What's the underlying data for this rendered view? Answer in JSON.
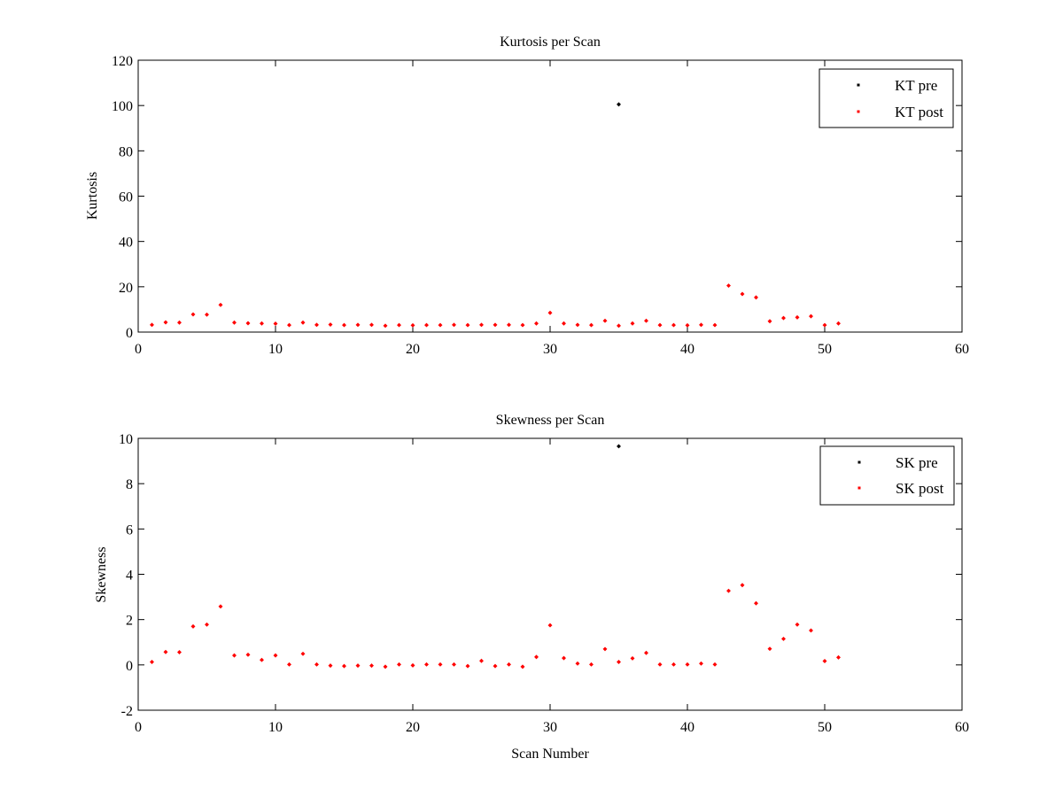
{
  "chart_data": [
    {
      "type": "scatter",
      "title": "Kurtosis per Scan",
      "xlabel": "",
      "ylabel": "Kurtosis",
      "xlim": [
        0,
        60
      ],
      "ylim": [
        0,
        120
      ],
      "xticks": [
        0,
        10,
        20,
        30,
        40,
        50,
        60
      ],
      "yticks": [
        0,
        20,
        40,
        60,
        80,
        100,
        120
      ],
      "grid": false,
      "legend_position": "top-right",
      "series": [
        {
          "name": "KT pre",
          "color": "#000000",
          "points": [
            [
              35,
              100.5
            ]
          ]
        },
        {
          "name": "KT post",
          "color": "#ff0000",
          "points": [
            [
              1,
              3.2
            ],
            [
              2,
              4.3
            ],
            [
              3,
              4.2
            ],
            [
              4,
              7.8
            ],
            [
              5,
              7.7
            ],
            [
              6,
              12.0
            ],
            [
              7,
              4.2
            ],
            [
              8,
              3.9
            ],
            [
              9,
              3.8
            ],
            [
              10,
              3.7
            ],
            [
              11,
              3.1
            ],
            [
              12,
              4.2
            ],
            [
              13,
              3.2
            ],
            [
              14,
              3.3
            ],
            [
              15,
              3.1
            ],
            [
              16,
              3.2
            ],
            [
              17,
              3.2
            ],
            [
              18,
              2.8
            ],
            [
              19,
              3.1
            ],
            [
              20,
              3.0
            ],
            [
              21,
              3.1
            ],
            [
              22,
              3.1
            ],
            [
              23,
              3.2
            ],
            [
              24,
              3.1
            ],
            [
              25,
              3.2
            ],
            [
              26,
              3.2
            ],
            [
              27,
              3.2
            ],
            [
              28,
              3.1
            ],
            [
              29,
              3.8
            ],
            [
              30,
              8.5
            ],
            [
              31,
              3.8
            ],
            [
              32,
              3.2
            ],
            [
              33,
              3.1
            ],
            [
              34,
              5.0
            ],
            [
              35,
              2.8
            ],
            [
              36,
              3.8
            ],
            [
              37,
              5.0
            ],
            [
              38,
              3.1
            ],
            [
              39,
              3.1
            ],
            [
              40,
              3.0
            ],
            [
              41,
              3.2
            ],
            [
              42,
              3.1
            ],
            [
              43,
              20.5
            ],
            [
              44,
              16.8
            ],
            [
              45,
              15.3
            ],
            [
              46,
              4.8
            ],
            [
              47,
              6.2
            ],
            [
              48,
              6.5
            ],
            [
              49,
              7.0
            ],
            [
              50,
              3.1
            ],
            [
              51,
              3.8
            ]
          ]
        }
      ]
    },
    {
      "type": "scatter",
      "title": "Skewness per Scan",
      "xlabel": "Scan Number",
      "ylabel": "Skewness",
      "xlim": [
        0,
        60
      ],
      "ylim": [
        -2,
        10
      ],
      "xticks": [
        0,
        10,
        20,
        30,
        40,
        50,
        60
      ],
      "yticks": [
        -2,
        0,
        2,
        4,
        6,
        8,
        10
      ],
      "grid": false,
      "legend_position": "top-right",
      "series": [
        {
          "name": "SK pre",
          "color": "#000000",
          "points": [
            [
              35,
              9.65
            ]
          ]
        },
        {
          "name": "SK post",
          "color": "#ff0000",
          "points": [
            [
              1,
              0.13
            ],
            [
              2,
              0.57
            ],
            [
              3,
              0.56
            ],
            [
              4,
              1.7
            ],
            [
              5,
              1.78
            ],
            [
              6,
              2.58
            ],
            [
              7,
              0.42
            ],
            [
              8,
              0.45
            ],
            [
              9,
              0.22
            ],
            [
              10,
              0.42
            ],
            [
              11,
              0.02
            ],
            [
              12,
              0.49
            ],
            [
              13,
              0.02
            ],
            [
              14,
              -0.03
            ],
            [
              15,
              -0.05
            ],
            [
              16,
              -0.03
            ],
            [
              17,
              -0.03
            ],
            [
              18,
              -0.08
            ],
            [
              19,
              0.02
            ],
            [
              20,
              -0.02
            ],
            [
              21,
              0.02
            ],
            [
              22,
              0.02
            ],
            [
              23,
              0.02
            ],
            [
              24,
              -0.05
            ],
            [
              25,
              0.18
            ],
            [
              26,
              -0.05
            ],
            [
              27,
              0.02
            ],
            [
              28,
              -0.08
            ],
            [
              29,
              0.35
            ],
            [
              30,
              1.75
            ],
            [
              31,
              0.3
            ],
            [
              32,
              0.06
            ],
            [
              33,
              0.02
            ],
            [
              34,
              0.7
            ],
            [
              35,
              0.13
            ],
            [
              36,
              0.29
            ],
            [
              37,
              0.53
            ],
            [
              38,
              0.02
            ],
            [
              39,
              0.02
            ],
            [
              40,
              0.02
            ],
            [
              41,
              0.06
            ],
            [
              42,
              0.02
            ],
            [
              43,
              3.27
            ],
            [
              44,
              3.52
            ],
            [
              45,
              2.72
            ],
            [
              46,
              0.71
            ],
            [
              47,
              1.15
            ],
            [
              48,
              1.78
            ],
            [
              49,
              1.52
            ],
            [
              50,
              0.17
            ],
            [
              51,
              0.33
            ]
          ]
        }
      ]
    }
  ]
}
